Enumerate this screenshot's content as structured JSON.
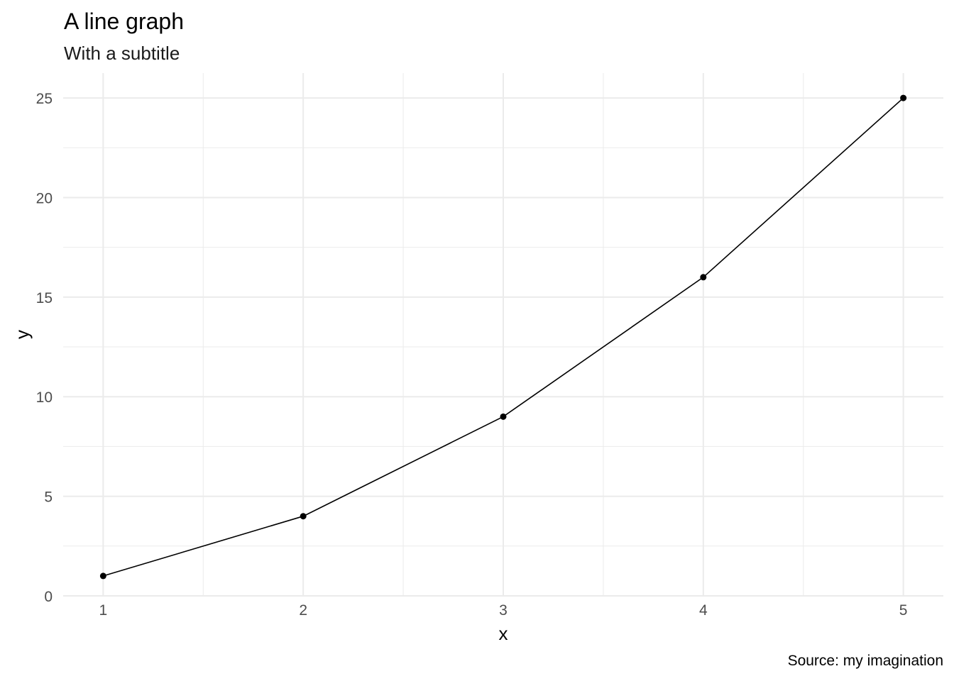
{
  "chart_data": {
    "type": "line",
    "title": "A line graph",
    "subtitle": "With a subtitle",
    "caption": "Source: my imagination",
    "xlabel": "x",
    "ylabel": "y",
    "x": [
      1,
      2,
      3,
      4,
      5
    ],
    "y": [
      1,
      4,
      9,
      16,
      25
    ],
    "xlim": [
      0.8,
      5.2
    ],
    "ylim": [
      0,
      26.25
    ],
    "x_ticks": [
      1,
      2,
      3,
      4,
      5
    ],
    "y_ticks": [
      0,
      5,
      10,
      15,
      20,
      25
    ],
    "grid": true,
    "line_color": "#000000",
    "gridline_color": "#ebebeb",
    "tick_label_color": "#4d4d4d"
  }
}
